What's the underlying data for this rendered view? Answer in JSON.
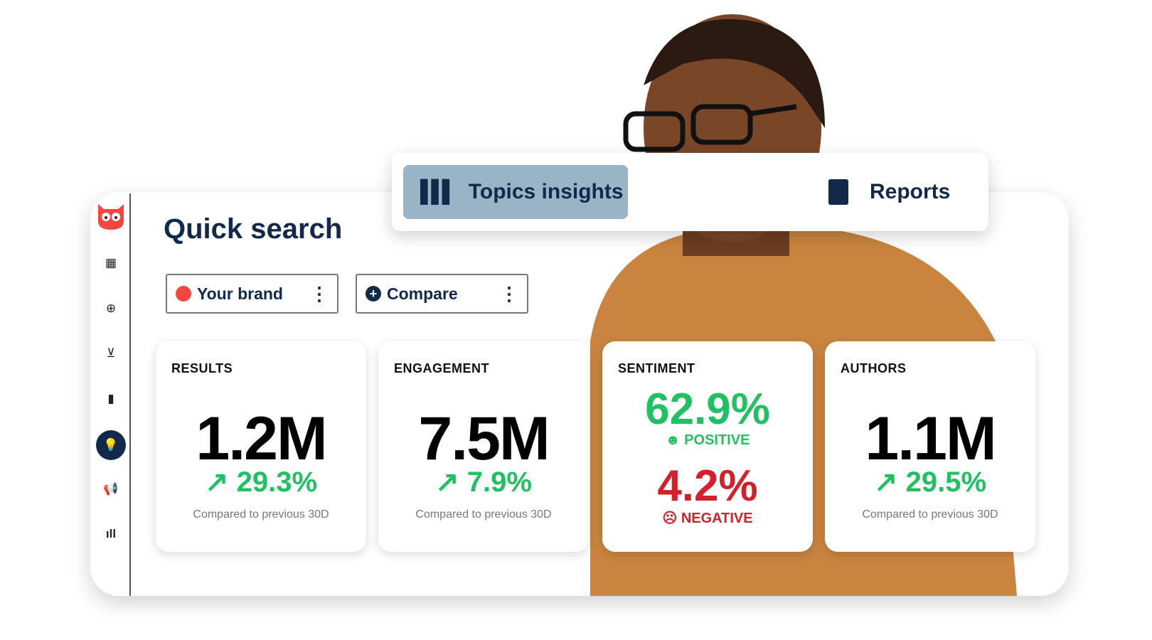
{
  "sidebar": {
    "items": [
      {
        "icon": "owl-logo-icon"
      },
      {
        "icon": "calendar-icon"
      },
      {
        "icon": "plus-circle-icon"
      },
      {
        "icon": "inbox-icon"
      },
      {
        "icon": "bar-chart-icon"
      },
      {
        "icon": "lightbulb-icon",
        "active": true
      },
      {
        "icon": "megaphone-icon"
      },
      {
        "icon": "listening-icon"
      }
    ]
  },
  "header": {
    "title": "Quick search"
  },
  "filters": {
    "brand": "Your brand",
    "compare": "Compare"
  },
  "tabs": [
    {
      "label": "Topics insights",
      "active": true
    },
    {
      "label": "Reports"
    }
  ],
  "cards": {
    "results": {
      "label": "RESULTS",
      "value": "1.2M",
      "change": "29.3%",
      "compare": "Compared to previous 30D"
    },
    "engagement": {
      "label": "ENGAGEMENT",
      "value": "7.5M",
      "change": "7.9%",
      "compare": "Compared to previous 30D"
    },
    "sentiment": {
      "label": "SENTIMENT",
      "positive": "62.9%",
      "positive_label": "POSITIVE",
      "negative": "4.2%",
      "negative_label": "NEGATIVE"
    },
    "authors": {
      "label": "AUTHORS",
      "value": "1.1M",
      "change": "29.5%",
      "compare": "Compared to previous 30D"
    }
  },
  "colors": {
    "brand": "#13294b",
    "positive": "#21c063",
    "negative": "#d3202a",
    "accent": "#f4463f",
    "tab_active": "#98b4c5"
  }
}
